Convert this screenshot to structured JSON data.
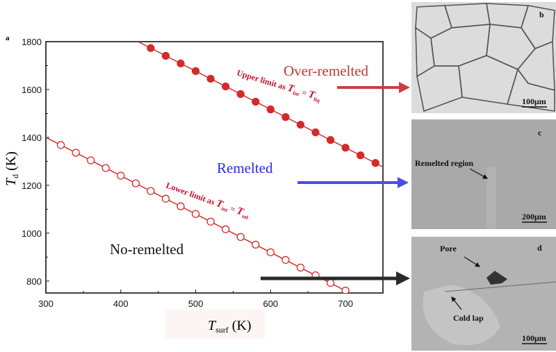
{
  "panel_label": "a",
  "chart_data": {
    "type": "line",
    "xlabel": {
      "main": "T",
      "sub": "surf",
      "unit": "(K)"
    },
    "ylabel": {
      "main": "T",
      "sub": "d",
      "unit": "(K)"
    },
    "xlim": [
      300,
      750
    ],
    "ylim": [
      750,
      1800
    ],
    "xticks": [
      300,
      400,
      500,
      600,
      700
    ],
    "yticks": [
      800,
      1000,
      1200,
      1400,
      1600,
      1800
    ],
    "grid": false,
    "series": [
      {
        "name": "Upper limit",
        "marker": "filled-circle",
        "color": "#d42a2a",
        "line_x": [
          420,
          750
        ],
        "line_y": [
          1805,
          1277
        ],
        "x": [
          440,
          460,
          480,
          500,
          520,
          540,
          560,
          580,
          600,
          620,
          640,
          660,
          680,
          700,
          720,
          740
        ],
        "y": [
          1773,
          1741,
          1709,
          1677,
          1645,
          1613,
          1581,
          1549,
          1517,
          1485,
          1453,
          1421,
          1389,
          1357,
          1325,
          1293
        ]
      },
      {
        "name": "Lower limit",
        "marker": "open-circle",
        "color": "#d42a2a",
        "line_x": [
          300,
          706
        ],
        "line_y": [
          1400,
          750
        ],
        "x": [
          320,
          340,
          360,
          380,
          400,
          420,
          440,
          460,
          480,
          500,
          520,
          540,
          560,
          580,
          600,
          620,
          640,
          660,
          680,
          700
        ],
        "y": [
          1368,
          1336,
          1304,
          1272,
          1240,
          1208,
          1176,
          1144,
          1112,
          1080,
          1048,
          1016,
          984,
          952,
          920,
          888,
          856,
          824,
          792,
          760
        ]
      }
    ],
    "annotations": {
      "upper": {
        "prefix": "Upper limit as ",
        "t1": "T",
        "s1": "int",
        "eq": " = ",
        "t2": "T",
        "s2": "liq"
      },
      "lower": {
        "prefix": "Lower limit as ",
        "t1": "T",
        "s1": "int",
        "eq": " = ",
        "t2": "T",
        "s2": "sol"
      },
      "regions": {
        "over": "Over-remelted",
        "remelted": "Remelted",
        "no": "No-remelted"
      }
    }
  },
  "colors": {
    "over": "#c0392b",
    "remelted": "#2a2ae8",
    "no": "#222222",
    "arrow_red": "#c94040",
    "arrow_blue": "#4a4af0",
    "arrow_black": "#2a2a2a"
  },
  "micrographs": {
    "b": {
      "label": "b",
      "scale": "100μm"
    },
    "c": {
      "label": "c",
      "scale": "200μm",
      "note": "Remelted region"
    },
    "d": {
      "label": "d",
      "scale": "100μm",
      "note1": "Pore",
      "note2": "Cold lap"
    }
  }
}
